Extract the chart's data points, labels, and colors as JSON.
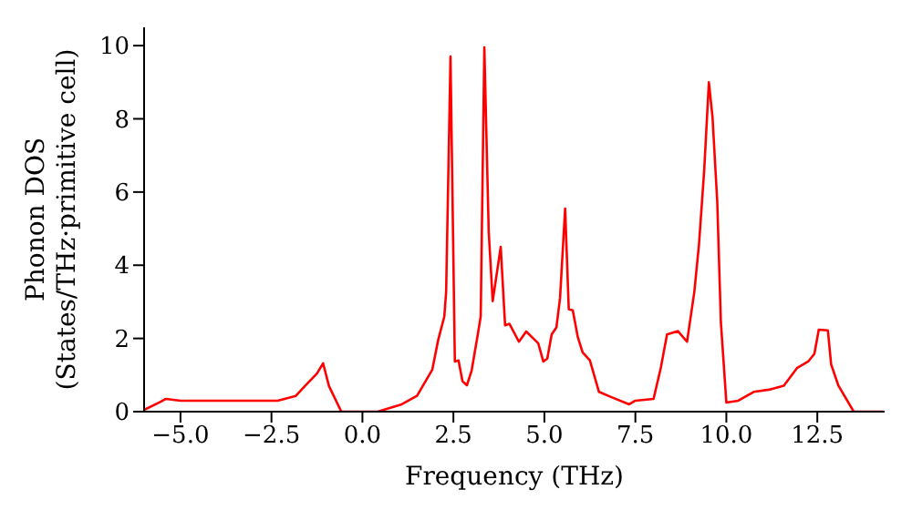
{
  "chart_data": {
    "type": "line",
    "xlabel": "Frequency (THz)",
    "ylabel": "Phonon DOS\n(States/THz·primitive cell)",
    "x": [
      -6,
      -5.58,
      -5.4,
      -5.0,
      -2.33,
      -1.83,
      -1.58,
      -1.25,
      -1.08,
      -0.92,
      -0.58,
      0.42,
      1.08,
      1.5,
      1.92,
      2.08,
      2.25,
      2.3,
      2.42,
      2.54,
      2.64,
      2.75,
      2.87,
      3.0,
      3.17,
      3.25,
      3.35,
      3.47,
      3.58,
      3.8,
      3.92,
      4.04,
      4.3,
      4.5,
      4.83,
      4.97,
      5.08,
      5.2,
      5.33,
      5.43,
      5.57,
      5.67,
      5.78,
      5.92,
      6.05,
      6.25,
      6.5,
      6.83,
      7.33,
      7.5,
      8.0,
      8.2,
      8.37,
      8.67,
      8.92,
      9.12,
      9.25,
      9.39,
      9.52,
      9.62,
      9.75,
      9.85,
      10.0,
      10.33,
      10.75,
      11.17,
      11.58,
      11.95,
      12.25,
      12.42,
      12.54,
      12.79,
      12.88,
      13.08,
      13.5,
      14.33
    ],
    "series": [
      {
        "color": "#ff0000",
        "values": [
          0.05,
          0.25,
          0.35,
          0.3,
          0.3,
          0.43,
          0.7,
          1.04,
          1.32,
          0.7,
          0,
          0,
          0.2,
          0.43,
          1.15,
          1.95,
          2.6,
          3.27,
          9.7,
          1.37,
          1.4,
          0.83,
          0.72,
          1.12,
          2.11,
          2.6,
          9.95,
          4.92,
          3.02,
          4.5,
          2.36,
          2.4,
          1.91,
          2.19,
          1.87,
          1.37,
          1.45,
          2.11,
          2.3,
          3.1,
          5.55,
          2.8,
          2.77,
          2.03,
          1.62,
          1.4,
          0.54,
          0.4,
          0.2,
          0.3,
          0.35,
          1.2,
          2.11,
          2.2,
          1.91,
          3.27,
          4.59,
          6.57,
          9.0,
          8.05,
          5.74,
          2.44,
          0.25,
          0.3,
          0.54,
          0.6,
          0.71,
          1.2,
          1.37,
          1.58,
          2.24,
          2.22,
          1.29,
          0.71,
          0,
          0
        ]
      }
    ],
    "xlim": [
      -6,
      14.35
    ],
    "ylim": [
      0,
      10.5
    ],
    "xticks": [
      {
        "value": -5,
        "label": "−5.0"
      },
      {
        "value": -2.5,
        "label": "−2.5"
      },
      {
        "value": 0,
        "label": "0.0"
      },
      {
        "value": 2.5,
        "label": "2.5"
      },
      {
        "value": 5,
        "label": "5.0"
      },
      {
        "value": 7.5,
        "label": "7.5"
      },
      {
        "value": 10,
        "label": "10.0"
      },
      {
        "value": 12.5,
        "label": "12.5"
      }
    ],
    "yticks": [
      0,
      2,
      4,
      6,
      8,
      10
    ],
    "grid": false,
    "legend": false,
    "marker": "none",
    "line_style": "solid"
  }
}
